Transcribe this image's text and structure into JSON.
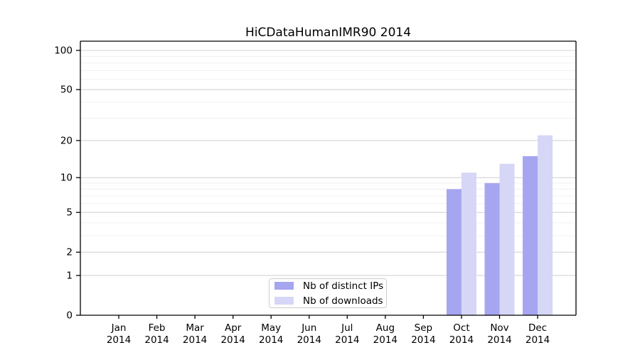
{
  "chart_data": {
    "type": "bar",
    "title": "HiCDataHumanIMR90 2014",
    "categories": [
      "Jan",
      "Feb",
      "Mar",
      "Apr",
      "May",
      "Jun",
      "Jul",
      "Aug",
      "Sep",
      "Oct",
      "Nov",
      "Dec"
    ],
    "year_label": "2014",
    "series": [
      {
        "name": "Nb of distinct IPs",
        "color": "#a5a5f0",
        "values": [
          0,
          0,
          0,
          0,
          0,
          0,
          0,
          0,
          0,
          8,
          9,
          15
        ]
      },
      {
        "name": "Nb of downloads",
        "color": "#d6d6f7",
        "values": [
          0,
          0,
          0,
          0,
          0,
          0,
          0,
          0,
          0,
          11,
          13,
          22
        ]
      }
    ],
    "yscale": "log1p",
    "ylim": [
      0,
      120
    ],
    "y_ticks": [
      0,
      1,
      2,
      5,
      10,
      20,
      50,
      100
    ],
    "y_minor_gridlines": [
      3,
      4,
      6,
      7,
      8,
      9,
      30,
      40,
      60,
      70,
      80,
      90
    ],
    "grid": true,
    "legend_position": "lower center",
    "colors": {
      "major_grid": "#d4d4d4",
      "minor_grid": "#f0f0f0",
      "axis": "#000000",
      "tick_label": "#000000"
    }
  }
}
